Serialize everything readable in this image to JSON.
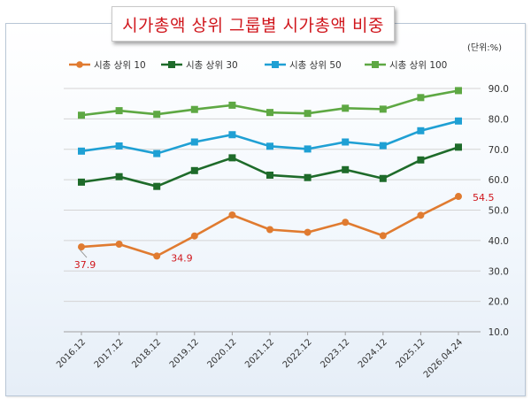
{
  "title": "시가총액 상위 그룹별 시가총액 비중",
  "unit": "(단위:%)",
  "chart_data": {
    "type": "line",
    "title": "시가총액 상위 그룹별 시가총액 비중",
    "categories": [
      "2016.12",
      "2017.12",
      "2018.12",
      "2019.12",
      "2020.12",
      "2021.12",
      "2022.12",
      "2023.12",
      "2024.12",
      "2025.12",
      "2026.04.24"
    ],
    "ylim": [
      10,
      90
    ],
    "yticks": [
      "10.0",
      "20.0",
      "30.0",
      "40.0",
      "50.0",
      "60.0",
      "70.0",
      "80.0",
      "90.0"
    ],
    "grid": true,
    "legend_position": "top",
    "series": [
      {
        "name": "시총 상위 10",
        "color": "#e07b30",
        "marker": "circle",
        "values": [
          37.9,
          38.8,
          34.9,
          41.5,
          48.4,
          43.6,
          42.7,
          46.0,
          41.6,
          48.3,
          54.5
        ]
      },
      {
        "name": "시총 상위 30",
        "color": "#1e6b2a",
        "marker": "square",
        "values": [
          59.2,
          61.0,
          57.8,
          63.0,
          67.2,
          61.5,
          60.7,
          63.3,
          60.4,
          66.5,
          70.7
        ]
      },
      {
        "name": "시총 상위 50",
        "color": "#1fa0d4",
        "marker": "square",
        "values": [
          69.4,
          71.1,
          68.6,
          72.4,
          74.8,
          71.0,
          70.1,
          72.4,
          71.2,
          76.1,
          79.3
        ]
      },
      {
        "name": "시총 상위 100",
        "color": "#5ea843",
        "marker": "square",
        "values": [
          81.2,
          82.7,
          81.5,
          83.1,
          84.5,
          82.1,
          81.8,
          83.5,
          83.2,
          87.0,
          89.3
        ]
      }
    ],
    "annotations": [
      {
        "series": 0,
        "index": 0,
        "label": "37.9",
        "color": "#d0161c"
      },
      {
        "series": 0,
        "index": 2,
        "label": "34.9",
        "color": "#d0161c"
      },
      {
        "series": 0,
        "index": 10,
        "label": "54.5",
        "color": "#d0161c"
      }
    ]
  }
}
